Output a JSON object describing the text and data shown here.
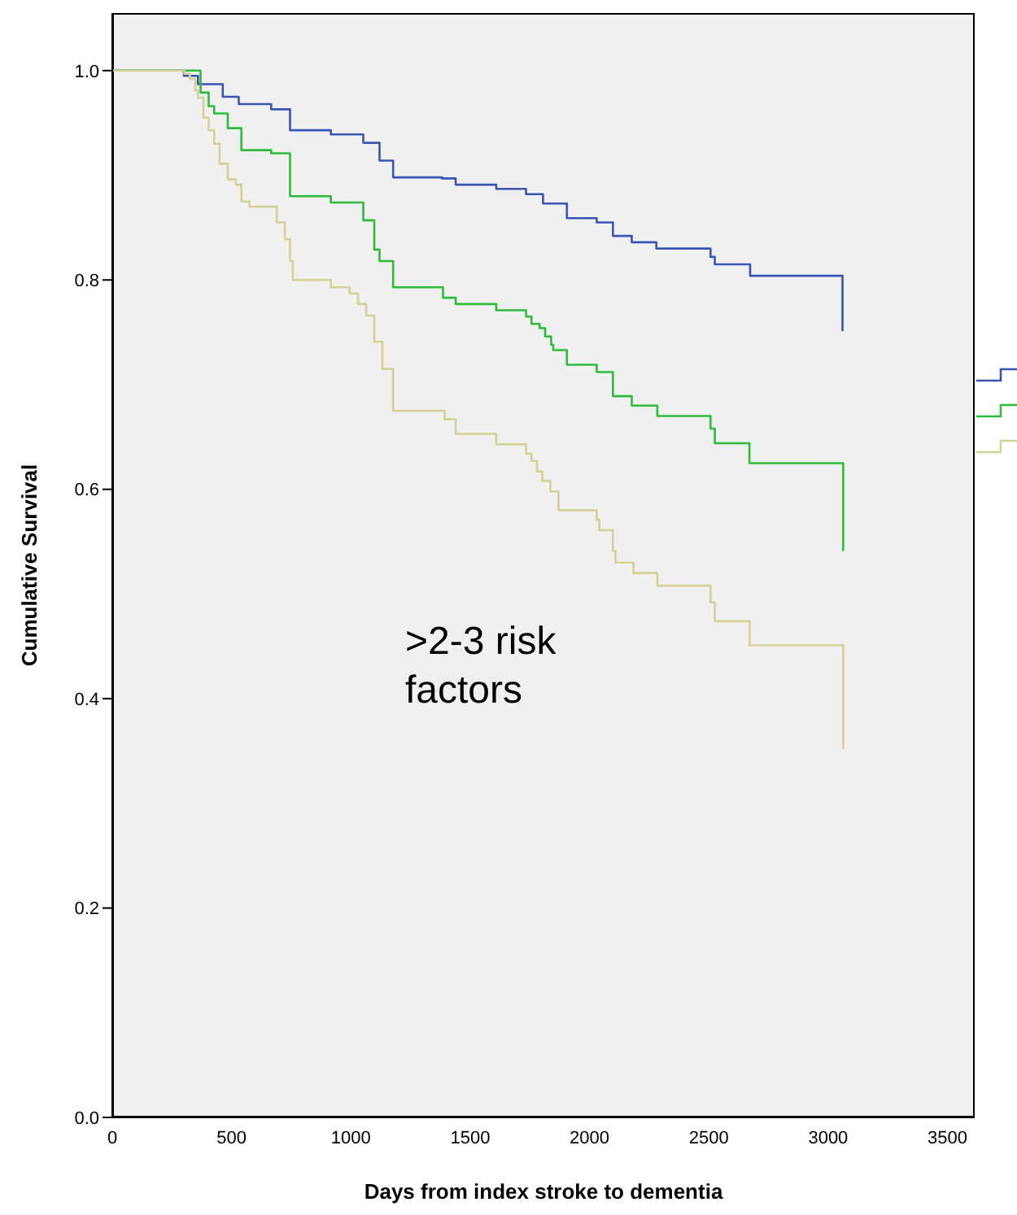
{
  "chart_data": {
    "type": "step",
    "xlabel": "Days from index stroke to dementia",
    "ylabel": "Cumulative Survival",
    "xlim": [
      0,
      3614
    ],
    "ylim": [
      0,
      1.055
    ],
    "xticks": [
      0,
      500,
      1000,
      1500,
      2000,
      2500,
      3000,
      3500
    ],
    "yticks": [
      {
        "value": 0,
        "label": "0.0"
      },
      {
        "value": 0.2,
        "label": "0.2"
      },
      {
        "value": 0.4,
        "label": "0.4"
      },
      {
        "value": 0.6,
        "label": "0.6"
      },
      {
        "value": 0.8,
        "label": "0.8"
      },
      {
        "value": 1,
        "label": "1.0"
      }
    ],
    "grid": false,
    "legend": false,
    "marker": "none",
    "line_style": "solid",
    "annotations": [
      ">2-3 risk factors"
    ],
    "series": [
      {
        "color": "#3a54b4",
        "x": [
          0,
          265,
          300,
          359,
          463,
          530,
          666,
          745,
          916,
          1052,
          1120,
          1177,
          1382,
          1439,
          1609,
          1734,
          1805,
          1905,
          2030,
          2098,
          2177,
          2280,
          2507,
          2525,
          2673,
          3060
        ],
        "values": [
          1.0,
          1.0,
          0.995,
          0.987,
          0.975,
          0.968,
          0.963,
          0.943,
          0.939,
          0.931,
          0.914,
          0.898,
          0.897,
          0.891,
          0.887,
          0.882,
          0.873,
          0.859,
          0.855,
          0.842,
          0.836,
          0.83,
          0.822,
          0.815,
          0.804,
          0.751
        ]
      },
      {
        "color": "#2dbb3a",
        "x": [
          0,
          335,
          370,
          404,
          427,
          484,
          541,
          666,
          745,
          916,
          1052,
          1098,
          1120,
          1177,
          1386,
          1439,
          1609,
          1734,
          1757,
          1791,
          1814,
          1839,
          1848,
          1905,
          2030,
          2098,
          2177,
          2284,
          2507,
          2525,
          2670,
          3063
        ],
        "values": [
          1.0,
          1.0,
          0.979,
          0.966,
          0.959,
          0.945,
          0.924,
          0.921,
          0.88,
          0.874,
          0.857,
          0.829,
          0.818,
          0.793,
          0.783,
          0.777,
          0.771,
          0.765,
          0.758,
          0.754,
          0.746,
          0.738,
          0.733,
          0.719,
          0.712,
          0.689,
          0.68,
          0.67,
          0.658,
          0.644,
          0.625,
          0.541
        ]
      },
      {
        "color": "#d5d096",
        "x": [
          0,
          257,
          302,
          325,
          348,
          359,
          382,
          404,
          427,
          450,
          484,
          518,
          541,
          575,
          689,
          723,
          745,
          757,
          916,
          995,
          1030,
          1064,
          1098,
          1132,
          1177,
          1393,
          1439,
          1609,
          1734,
          1757,
          1780,
          1802,
          1836,
          1870,
          2030,
          2041,
          2098,
          2109,
          2184,
          2284,
          2507,
          2525,
          2671,
          3063
        ],
        "values": [
          1.0,
          1.0,
          0.997,
          0.992,
          0.981,
          0.974,
          0.955,
          0.943,
          0.93,
          0.911,
          0.896,
          0.891,
          0.875,
          0.87,
          0.855,
          0.839,
          0.818,
          0.8,
          0.793,
          0.787,
          0.777,
          0.766,
          0.741,
          0.715,
          0.675,
          0.667,
          0.653,
          0.643,
          0.634,
          0.627,
          0.617,
          0.608,
          0.598,
          0.58,
          0.571,
          0.561,
          0.541,
          0.53,
          0.52,
          0.508,
          0.492,
          0.474,
          0.451,
          0.352
        ]
      }
    ]
  }
}
